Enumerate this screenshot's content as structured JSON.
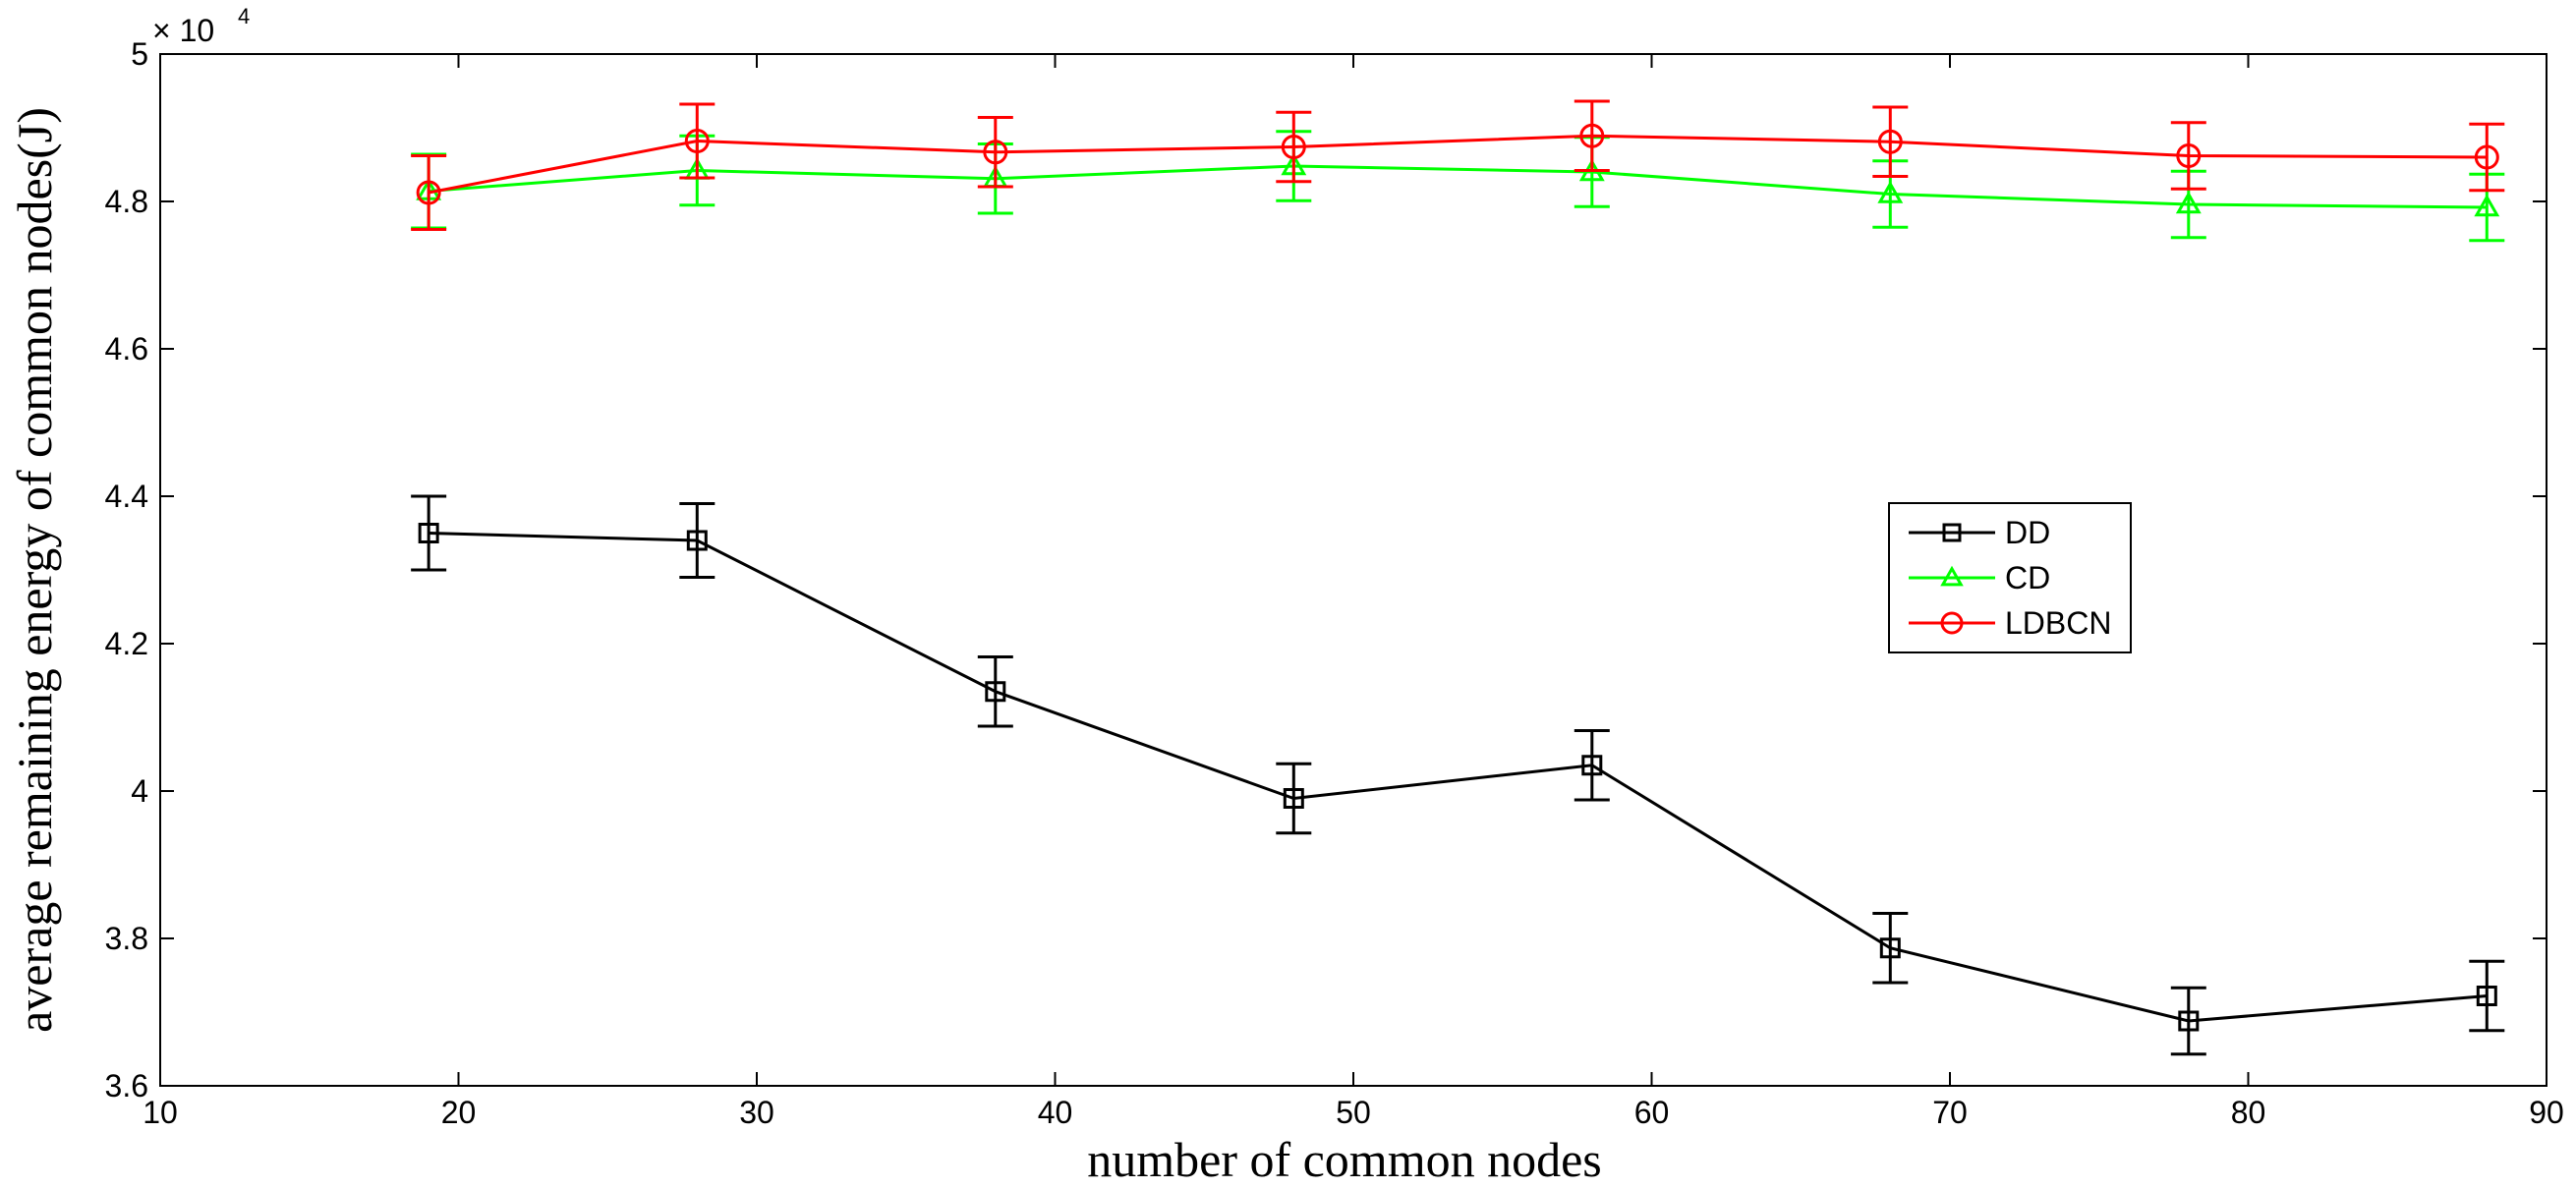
{
  "chart_data": {
    "type": "line",
    "title": "",
    "xlabel": "number of common nodes",
    "ylabel": "average remaining energy of common nodes(J)",
    "xlim": [
      10,
      90
    ],
    "ylim": [
      3.6,
      5.0
    ],
    "xticks": [
      10,
      20,
      30,
      40,
      50,
      60,
      70,
      80,
      90
    ],
    "yticks": [
      3.6,
      3.8,
      4,
      4.2,
      4.4,
      4.6,
      4.8,
      5
    ],
    "ytick_labels": [
      "3.6",
      "3.8",
      "4",
      "4.2",
      "4.4",
      "4.6",
      "4.8",
      "5"
    ],
    "y_multiplier_base": "× 10",
    "y_multiplier_exp": "4",
    "x": [
      19,
      28,
      38,
      48,
      58,
      68,
      78,
      88
    ],
    "legend_position": "center-right",
    "series": [
      {
        "name": "DD",
        "color": "#000000",
        "marker": "square",
        "values": [
          4.35,
          4.34,
          4.135,
          3.99,
          4.035,
          3.787,
          3.688,
          3.722
        ],
        "errors": [
          0.05,
          0.05,
          0.047,
          0.047,
          0.047,
          0.047,
          0.045,
          0.047
        ]
      },
      {
        "name": "CD",
        "color": "#00ff00",
        "marker": "triangle",
        "values": [
          4.814,
          4.842,
          4.831,
          4.848,
          4.84,
          4.81,
          4.796,
          4.792
        ],
        "errors": [
          0.05,
          0.047,
          0.047,
          0.047,
          0.047,
          0.045,
          0.045,
          0.045
        ]
      },
      {
        "name": "LDBCN",
        "color": "#ff0000",
        "marker": "circle",
        "values": [
          4.812,
          4.882,
          4.867,
          4.874,
          4.889,
          4.881,
          4.862,
          4.86
        ],
        "errors": [
          0.05,
          0.05,
          0.047,
          0.047,
          0.047,
          0.047,
          0.045,
          0.045
        ]
      }
    ]
  }
}
